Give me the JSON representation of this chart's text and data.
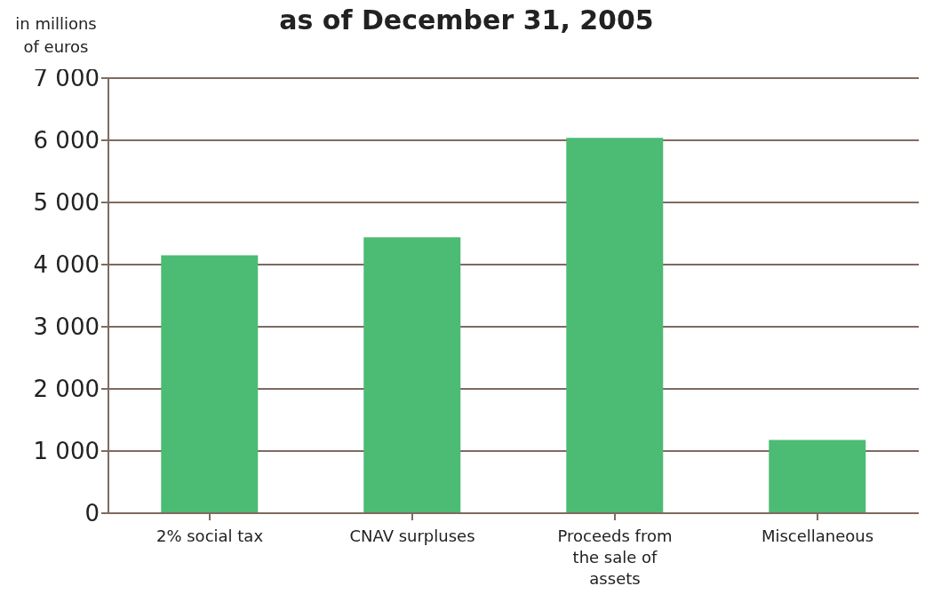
{
  "chart_data": {
    "type": "bar",
    "title": "as of December 31, 2005",
    "ylabel": "in millions of euros",
    "categories": [
      "2% social tax",
      "CNAV surpluses",
      "Proceeds from the sale of assets",
      "Miscellaneous"
    ],
    "values": [
      4150,
      4440,
      6040,
      1180
    ],
    "color": "#4cbb74",
    "ylim": [
      0,
      7000
    ],
    "yticks": [
      {
        "value": 0,
        "label": "0"
      },
      {
        "value": 1000,
        "label": "1 000"
      },
      {
        "value": 2000,
        "label": "2 000"
      },
      {
        "value": 3000,
        "label": "3 000"
      },
      {
        "value": 4000,
        "label": "4 000"
      },
      {
        "value": 5000,
        "label": "5 000"
      },
      {
        "value": 6000,
        "label": "6 000"
      },
      {
        "value": 7000,
        "label": "7 000"
      }
    ],
    "grid": "y",
    "legend": false
  }
}
